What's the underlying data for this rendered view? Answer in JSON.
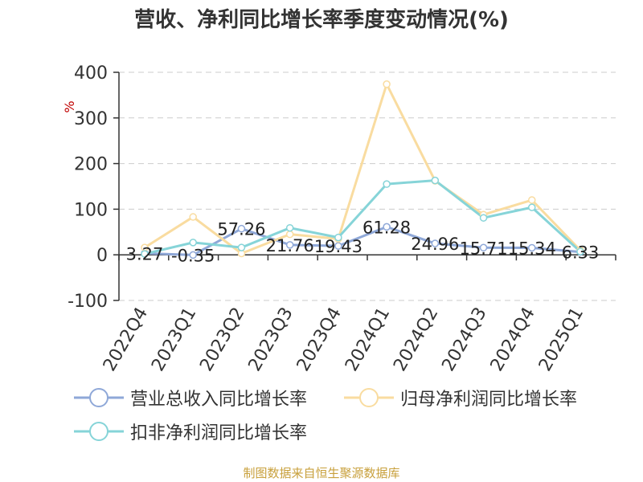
{
  "chart_data": {
    "type": "line",
    "title": "营收、净利同比增长率季度变动情况(%)",
    "ylabel": "%",
    "ylim": [
      -100,
      400
    ],
    "yticks": [
      -100,
      0,
      100,
      200,
      300,
      400
    ],
    "grid": true,
    "legend_position": "bottom",
    "categories": [
      "2022Q4",
      "2023Q1",
      "2023Q2",
      "2023Q3",
      "2023Q4",
      "2024Q1",
      "2024Q2",
      "2024Q3",
      "2024Q4",
      "2025Q1"
    ],
    "series": [
      {
        "name": "营业总收入同比增长率",
        "color": "#8fa8d8",
        "values": [
          3.27,
          -0.35,
          57.26,
          21.76,
          19.43,
          61.28,
          24.96,
          15.71,
          15.34,
          6.33
        ],
        "show_labels": true
      },
      {
        "name": "归母净利润同比增长率",
        "color": "#f9dca0",
        "values": [
          16,
          83,
          3,
          45,
          35,
          374,
          162,
          88,
          120,
          10
        ],
        "show_labels": false
      },
      {
        "name": "扣非净利润同比增长率",
        "color": "#86d4d8",
        "values": [
          2,
          27,
          16,
          59,
          38,
          155,
          163,
          81,
          104,
          7
        ],
        "show_labels": false
      }
    ]
  },
  "source": "制图数据来自恒生聚源数据库"
}
